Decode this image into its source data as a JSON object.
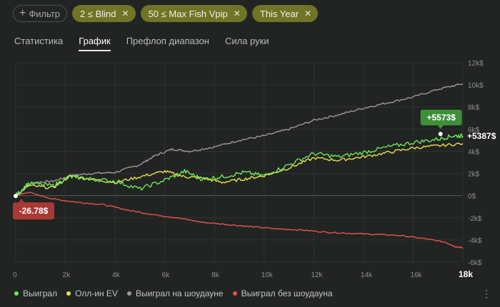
{
  "filters": {
    "add_label": "Фильтр",
    "chips": [
      {
        "label": "2 ≤ Blind"
      },
      {
        "label": "50 ≤ Max Fish Vpip"
      },
      {
        "label": "This Year"
      }
    ]
  },
  "tabs": [
    {
      "label": "Статистика",
      "selected": false
    },
    {
      "label": "График",
      "selected": true
    },
    {
      "label": "Префлоп диапазон",
      "selected": false
    },
    {
      "label": "Сила руки",
      "selected": false
    }
  ],
  "colors": {
    "won": "#6ee75a",
    "allin_ev": "#e8e04a",
    "showdown": "#9a9a9a",
    "non_showdown": "#e3544c",
    "badge_green": "#3e8f3a",
    "badge_red": "#a83a36"
  },
  "chart_data": {
    "type": "line",
    "x_ticks": [
      "0",
      "2k",
      "4k",
      "6k",
      "8k",
      "10k",
      "12k",
      "14k",
      "16k",
      "18k"
    ],
    "y_ticks": [
      "12k$",
      "10k$",
      "8k$",
      "6k$",
      "4k$",
      "2k$",
      "0$",
      "-2k$",
      "-4k$",
      "-6k$"
    ],
    "xlim": [
      0,
      18000
    ],
    "ylim": [
      -6000,
      12000
    ],
    "series": [
      {
        "name": "Выиграл",
        "key": "won",
        "points": [
          [
            0,
            0
          ],
          [
            500,
            1100
          ],
          [
            1500,
            900
          ],
          [
            2200,
            1700
          ],
          [
            3000,
            1500
          ],
          [
            4000,
            1300
          ],
          [
            5000,
            600
          ],
          [
            6000,
            1400
          ],
          [
            6800,
            2200
          ],
          [
            7500,
            1500
          ],
          [
            8300,
            1700
          ],
          [
            9200,
            2100
          ],
          [
            10000,
            1800
          ],
          [
            11000,
            2800
          ],
          [
            12000,
            3800
          ],
          [
            13000,
            3500
          ],
          [
            14000,
            3900
          ],
          [
            15000,
            4400
          ],
          [
            16000,
            4800
          ],
          [
            17000,
            5100
          ],
          [
            17600,
            5400
          ],
          [
            18000,
            5387
          ]
        ]
      },
      {
        "name": "Олл-ин EV",
        "key": "allin_ev",
        "points": [
          [
            0,
            0
          ],
          [
            500,
            900
          ],
          [
            1500,
            700
          ],
          [
            2200,
            1800
          ],
          [
            3000,
            1500
          ],
          [
            4000,
            1200
          ],
          [
            5000,
            1700
          ],
          [
            6000,
            2200
          ],
          [
            6800,
            1700
          ],
          [
            7500,
            1600
          ],
          [
            8300,
            1200
          ],
          [
            9200,
            1500
          ],
          [
            10000,
            1800
          ],
          [
            11000,
            2500
          ],
          [
            12000,
            3400
          ],
          [
            13000,
            3200
          ],
          [
            14000,
            3500
          ],
          [
            15000,
            3900
          ],
          [
            16000,
            4300
          ],
          [
            17000,
            4500
          ],
          [
            18000,
            4700
          ]
        ]
      },
      {
        "name": "Выиграл на шоудауне",
        "key": "showdown",
        "points": [
          [
            0,
            0
          ],
          [
            700,
            1200
          ],
          [
            1500,
            1300
          ],
          [
            2200,
            1800
          ],
          [
            3000,
            2000
          ],
          [
            4000,
            2100
          ],
          [
            5000,
            2800
          ],
          [
            5600,
            3600
          ],
          [
            6300,
            4200
          ],
          [
            7000,
            4000
          ],
          [
            8000,
            4400
          ],
          [
            9000,
            5000
          ],
          [
            10000,
            5400
          ],
          [
            11000,
            6000
          ],
          [
            12000,
            6800
          ],
          [
            13000,
            7300
          ],
          [
            14000,
            7900
          ],
          [
            15000,
            8400
          ],
          [
            16000,
            8900
          ],
          [
            17000,
            9600
          ],
          [
            18000,
            10100
          ]
        ]
      },
      {
        "name": "Выиграл без шоудауна",
        "key": "non_showdown",
        "points": [
          [
            0,
            0
          ],
          [
            500,
            300
          ],
          [
            1500,
            -300
          ],
          [
            2500,
            -600
          ],
          [
            3500,
            -800
          ],
          [
            4500,
            -1300
          ],
          [
            5500,
            -1700
          ],
          [
            6500,
            -2000
          ],
          [
            7500,
            -2400
          ],
          [
            8500,
            -2600
          ],
          [
            9500,
            -2800
          ],
          [
            10500,
            -3000
          ],
          [
            11500,
            -3100
          ],
          [
            12500,
            -3300
          ],
          [
            13500,
            -3400
          ],
          [
            14500,
            -3500
          ],
          [
            15500,
            -3600
          ],
          [
            16500,
            -3900
          ],
          [
            17300,
            -4200
          ],
          [
            17700,
            -4600
          ],
          [
            18000,
            -4700
          ]
        ]
      }
    ],
    "annotations": {
      "peak_label": "+5573$",
      "peak_point": [
        17100,
        5573
      ],
      "end_label": "+5387$",
      "end_point": [
        18000,
        5387
      ],
      "low_label": "-26.78$",
      "low_point": [
        0,
        -27
      ]
    },
    "grid": true,
    "legend_position": "bottom-left"
  }
}
